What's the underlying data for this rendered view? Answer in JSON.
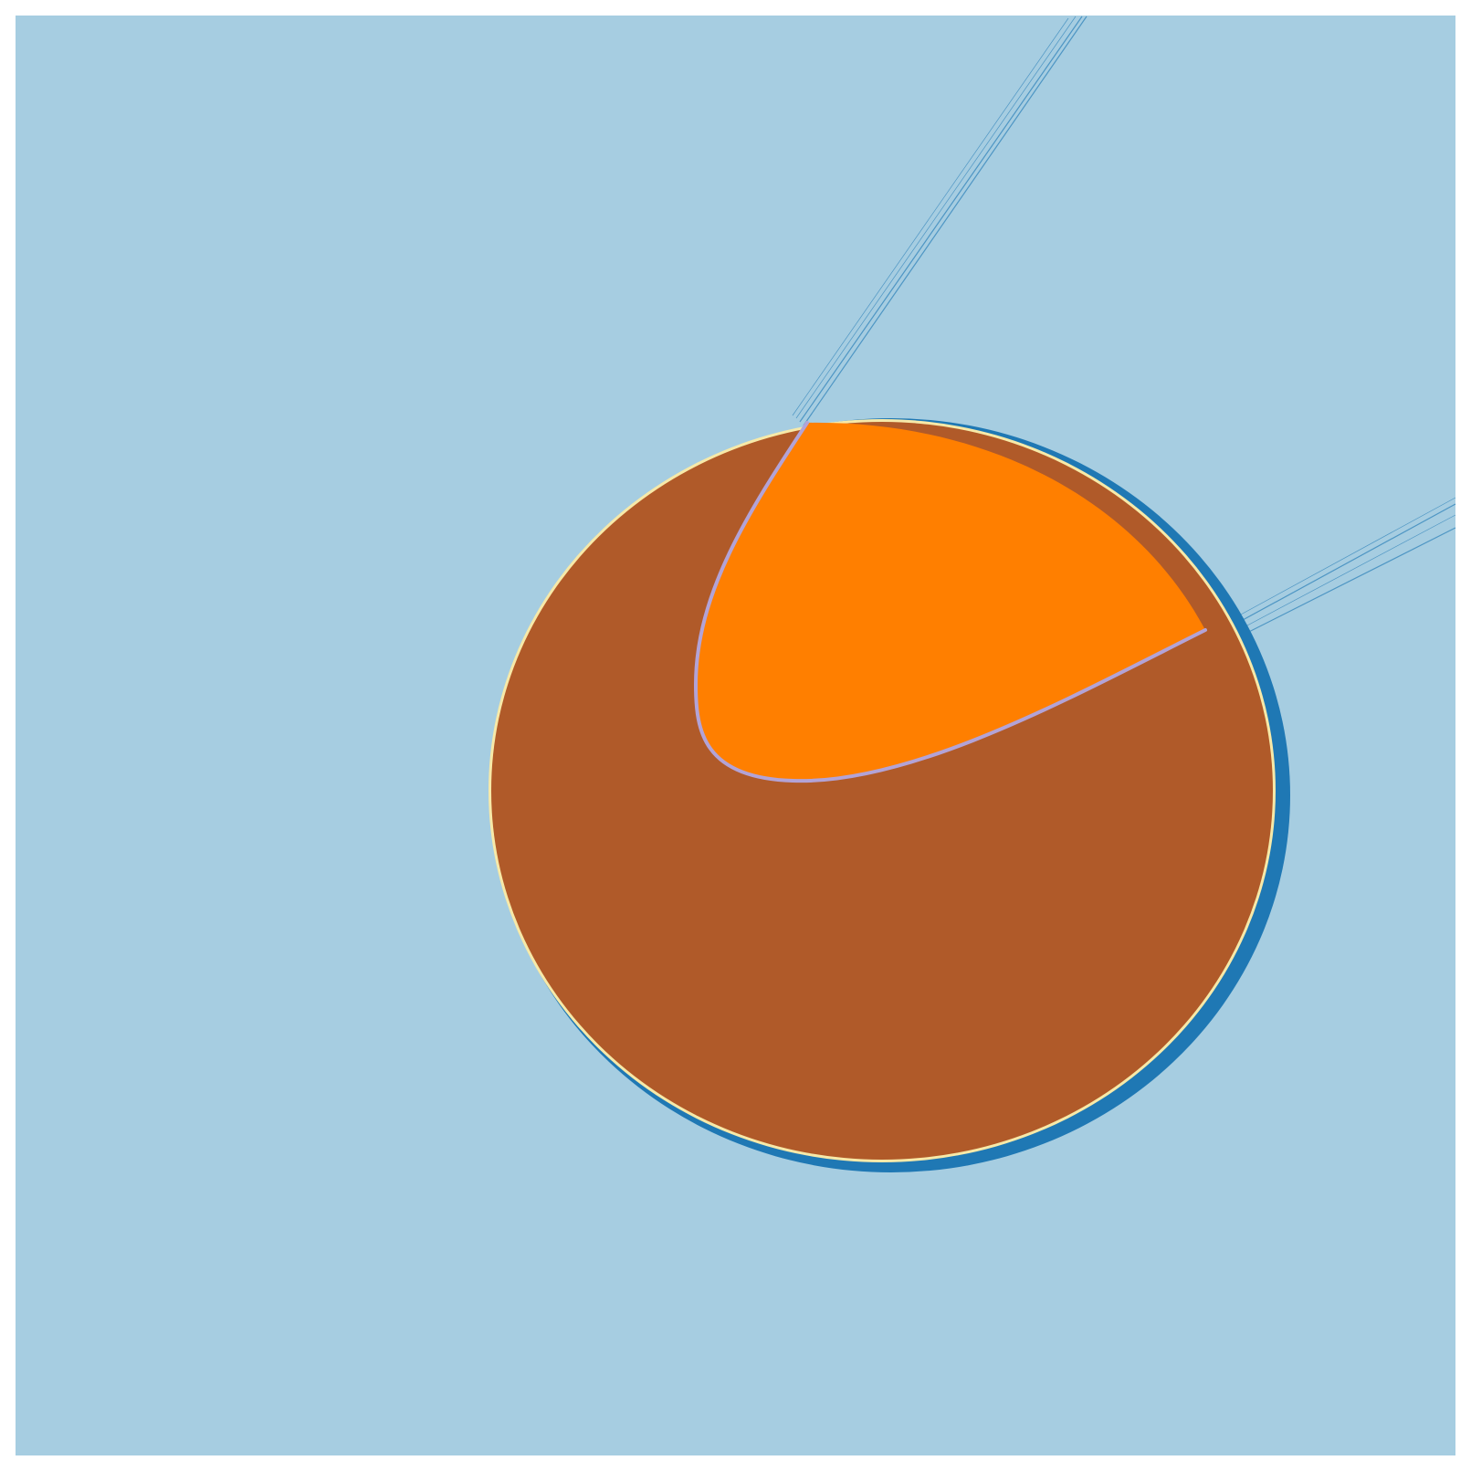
{
  "scene": {
    "description_visible_text": "",
    "colors": {
      "frame": "#ffffff",
      "background": "#a6cde1",
      "outer_rim": "#1f78b4",
      "disk_fill": "#b05a29",
      "inner_wedge": "#ff7f00",
      "seam_highlight": "#b3a3d6",
      "rim_highlight": "#f7e9a8",
      "rays": "#1f78b4"
    }
  }
}
